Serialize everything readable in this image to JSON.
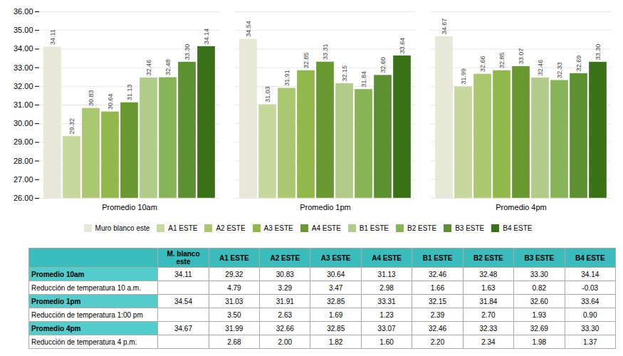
{
  "chart_data": {
    "type": "bar",
    "categories": [
      "Promedio 10am",
      "Promedio 1pm",
      "Promedio 4pm"
    ],
    "series": [
      {
        "name": "Muro blanco este",
        "color": "#e8e8d8",
        "values": [
          34.11,
          34.54,
          34.67
        ],
        "value_labels": [
          "34.11",
          "34.54",
          "34.67"
        ]
      },
      {
        "name": "A1 ESTE",
        "color": "#c8d89c",
        "values": [
          29.32,
          31.03,
          31.99
        ],
        "value_labels": [
          "29.32",
          "31.03",
          "31.99"
        ]
      },
      {
        "name": "A2 ESTE",
        "color": "#aac870",
        "values": [
          30.83,
          31.91,
          32.66
        ],
        "value_labels": [
          "30.83",
          "31.91",
          "32.66"
        ]
      },
      {
        "name": "A3 ESTE",
        "color": "#90b84a",
        "values": [
          30.64,
          32.85,
          32.85
        ],
        "value_labels": [
          "30.64",
          "32.85",
          "32.85"
        ]
      },
      {
        "name": "A4 ESTE",
        "color": "#6a9830",
        "values": [
          31.13,
          33.31,
          33.07
        ],
        "value_labels": [
          "31.13",
          "33.31",
          "33.07"
        ]
      },
      {
        "name": "B1 ESTE",
        "color": "#b0cc88",
        "values": [
          32.46,
          32.15,
          32.46
        ],
        "value_labels": [
          "32.46",
          "32.15",
          "32.46"
        ]
      },
      {
        "name": "B2 ESTE",
        "color": "#88b458",
        "values": [
          32.48,
          31.84,
          32.33
        ],
        "value_labels": [
          "32.48",
          "31.84",
          "32.33"
        ]
      },
      {
        "name": "B3 ESTE",
        "color": "#5c9030",
        "values": [
          33.3,
          32.6,
          32.69
        ],
        "value_labels": [
          "33.30",
          "32.60",
          "32.69"
        ]
      },
      {
        "name": "B4 ESTE",
        "color": "#3a7018",
        "values": [
          34.14,
          33.64,
          33.3
        ],
        "value_labels": [
          "34.14",
          "33.64",
          "33.30"
        ]
      }
    ],
    "ylim": [
      26,
      36
    ],
    "yticks": [
      {
        "value": 26,
        "label": "26.00"
      },
      {
        "value": 27,
        "label": "27.00"
      },
      {
        "value": 28,
        "label": "28.00"
      },
      {
        "value": 29,
        "label": "29.00"
      },
      {
        "value": 30,
        "label": "30.00"
      },
      {
        "value": 31,
        "label": "31.00"
      },
      {
        "value": 32,
        "label": "32.00"
      },
      {
        "value": 33,
        "label": "33.00"
      },
      {
        "value": 34,
        "label": "34.00"
      },
      {
        "value": 35,
        "label": "35.00"
      },
      {
        "value": 36,
        "label": "36.00"
      }
    ],
    "grid": true,
    "legend": "bottom",
    "data_labels": true,
    "table": {
      "columns": [
        "M. blanco\neste",
        "A1 ESTE",
        "A2 ESTE",
        "A3 ESTE",
        "A4 ESTE",
        "B1 ESTE",
        "B2 ESTE",
        "B3 ESTE",
        "B4 ESTE"
      ],
      "rows": [
        {
          "label": "Promedio 10am",
          "cells": [
            "34.11",
            "29.32",
            "30.83",
            "30.64",
            "31.13",
            "32.46",
            "32.48",
            "33.30",
            "34.14"
          ]
        },
        {
          "label": "Reducción de temperatura 10 a.m.",
          "cells": [
            null,
            "4.79",
            "3.29",
            "3.47",
            "2.98",
            "1.66",
            "1.63",
            "0.82",
            "-0.03"
          ]
        },
        {
          "label": "Promedio 1pm",
          "cells": [
            "34.54",
            "31.03",
            "31.91",
            "32.85",
            "33.31",
            "32.15",
            "31.84",
            "32.60",
            "33.64"
          ]
        },
        {
          "label": "Reducción de temperatura 1:00 pm",
          "cells": [
            null,
            "3.50",
            "2.63",
            "1.69",
            "1.23",
            "2.39",
            "2.70",
            "1.93",
            "0.90"
          ]
        },
        {
          "label": "Promedio 4pm",
          "cells": [
            "34.67",
            "31.99",
            "32.66",
            "32.85",
            "33.07",
            "32.46",
            "32.33",
            "32.69",
            "33.30"
          ]
        },
        {
          "label": "Reducción de temperatura 4 p.m.",
          "cells": [
            null,
            "2.68",
            "2.00",
            "1.82",
            "1.60",
            "2.20",
            "2.34",
            "1.98",
            "1.37"
          ]
        }
      ]
    }
  }
}
